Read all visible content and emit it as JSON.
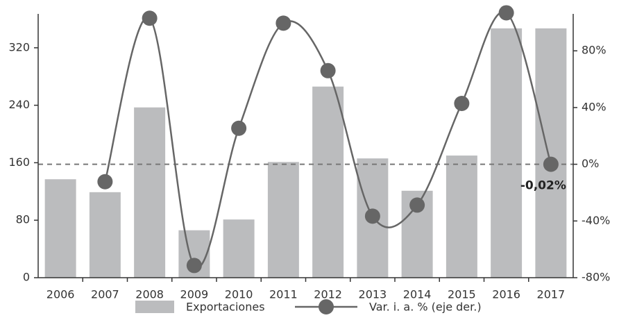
{
  "chart_data": {
    "type": "bar-line",
    "categories": [
      "2006",
      "2007",
      "2008",
      "2009",
      "2010",
      "2011",
      "2012",
      "2013",
      "2014",
      "2015",
      "2016",
      "2017"
    ],
    "series": [
      {
        "name": "Exportaciones",
        "type": "bar",
        "color": "#bbbcbe",
        "values": [
          137,
          119,
          237,
          66,
          81,
          161,
          266,
          166,
          121,
          170,
          347,
          347
        ]
      },
      {
        "name": "Var. i. a. % (eje der.)",
        "type": "line",
        "axis": "y2",
        "color": "#666666",
        "values": [
          null,
          -12.3,
          103,
          -71.4,
          25.4,
          99.5,
          66,
          -36.6,
          -28.8,
          42.9,
          106.8,
          -0.02
        ],
        "value_labels": [
          null,
          null,
          null,
          null,
          null,
          null,
          null,
          null,
          null,
          null,
          null,
          "-0,02%"
        ]
      }
    ],
    "ylim": [
      0,
      372
    ],
    "yticks": [
      0,
      80,
      160,
      240,
      320
    ],
    "y2lim": [
      -80,
      108.5
    ],
    "y2ticks": [
      {
        "value": -80,
        "label": "-80%"
      },
      {
        "value": -40,
        "label": "-40%"
      },
      {
        "value": 0,
        "label": "0%"
      },
      {
        "value": 40,
        "label": "40%"
      },
      {
        "value": 80,
        "label": "80%"
      }
    ],
    "reference_line": {
      "axis": "y2",
      "value": 0
    }
  }
}
